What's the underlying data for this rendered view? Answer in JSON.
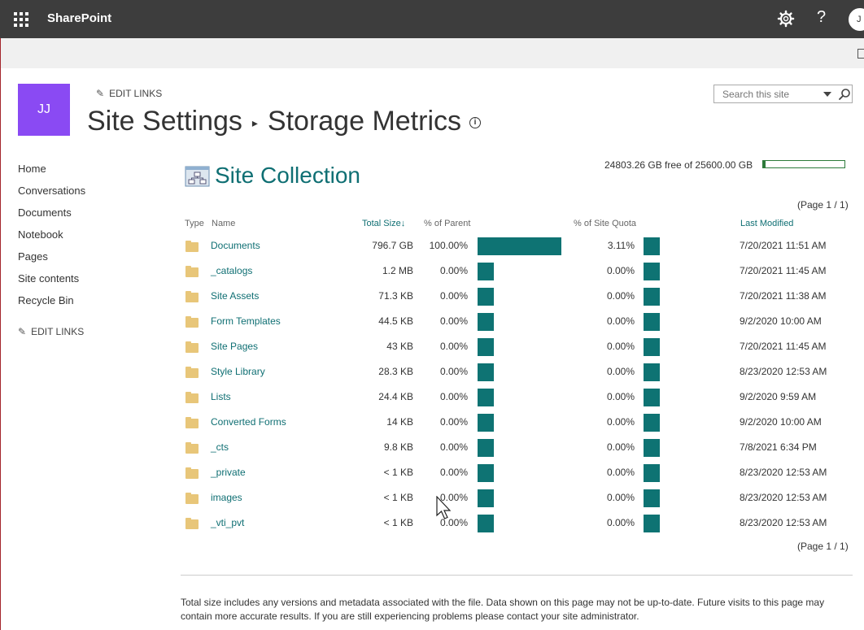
{
  "suite": {
    "brand": "SharePoint",
    "help_glyph": "?",
    "user_initial": "J"
  },
  "site": {
    "logo_initials": "JJ",
    "edit_links": "EDIT LINKS",
    "title_parent": "Site Settings",
    "title_current": "Storage Metrics",
    "info_glyph": "i"
  },
  "search": {
    "placeholder": "Search this site"
  },
  "nav": {
    "items": [
      "Home",
      "Conversations",
      "Documents",
      "Notebook",
      "Pages",
      "Site contents",
      "Recycle Bin"
    ],
    "edit_links": "EDIT LINKS"
  },
  "main": {
    "title": "Site Collection",
    "free_text": "24803.26 GB free of 25600.00 GB",
    "quota_used_fraction": 0.0311,
    "pager_top": "(Page 1 / 1)",
    "pager_bottom": "(Page 1 / 1)",
    "columns": {
      "type": "Type",
      "name": "Name",
      "size": "Total Size",
      "sort_glyph": "↓",
      "pct_parent": "% of Parent",
      "pct_quota": "% of Site Quota",
      "modified": "Last Modified"
    },
    "accent_color": "#0e7373",
    "rows": [
      {
        "name": "Documents",
        "size": "796.7 GB",
        "pct_parent": "100.00%",
        "parent_fraction": 1.0,
        "pct_quota": "3.11%",
        "modified": "7/20/2021 11:51 AM"
      },
      {
        "name": "_catalogs",
        "size": "1.2 MB",
        "pct_parent": "0.00%",
        "parent_fraction": 0.0,
        "pct_quota": "0.00%",
        "modified": "7/20/2021 11:45 AM"
      },
      {
        "name": "Site Assets",
        "size": "71.3 KB",
        "pct_parent": "0.00%",
        "parent_fraction": 0.0,
        "pct_quota": "0.00%",
        "modified": "7/20/2021 11:38 AM"
      },
      {
        "name": "Form Templates",
        "size": "44.5 KB",
        "pct_parent": "0.00%",
        "parent_fraction": 0.0,
        "pct_quota": "0.00%",
        "modified": "9/2/2020 10:00 AM"
      },
      {
        "name": "Site Pages",
        "size": "43 KB",
        "pct_parent": "0.00%",
        "parent_fraction": 0.0,
        "pct_quota": "0.00%",
        "modified": "7/20/2021 11:45 AM"
      },
      {
        "name": "Style Library",
        "size": "28.3 KB",
        "pct_parent": "0.00%",
        "parent_fraction": 0.0,
        "pct_quota": "0.00%",
        "modified": "8/23/2020 12:53 AM"
      },
      {
        "name": "Lists",
        "size": "24.4 KB",
        "pct_parent": "0.00%",
        "parent_fraction": 0.0,
        "pct_quota": "0.00%",
        "modified": "9/2/2020 9:59 AM"
      },
      {
        "name": "Converted Forms",
        "size": "14 KB",
        "pct_parent": "0.00%",
        "parent_fraction": 0.0,
        "pct_quota": "0.00%",
        "modified": "9/2/2020 10:00 AM"
      },
      {
        "name": "_cts",
        "size": "9.8 KB",
        "pct_parent": "0.00%",
        "parent_fraction": 0.0,
        "pct_quota": "0.00%",
        "modified": "7/8/2021 6:34 PM"
      },
      {
        "name": "_private",
        "size": "< 1 KB",
        "pct_parent": "0.00%",
        "parent_fraction": 0.0,
        "pct_quota": "0.00%",
        "modified": "8/23/2020 12:53 AM"
      },
      {
        "name": "images",
        "size": "< 1 KB",
        "pct_parent": "0.00%",
        "parent_fraction": 0.0,
        "pct_quota": "0.00%",
        "modified": "8/23/2020 12:53 AM"
      },
      {
        "name": "_vti_pvt",
        "size": "< 1 KB",
        "pct_parent": "0.00%",
        "parent_fraction": 0.0,
        "pct_quota": "0.00%",
        "modified": "8/23/2020 12:53 AM"
      }
    ]
  },
  "footer": {
    "note": "Total size includes any versions and metadata associated with the file. Data shown on this page may not be up-to-date. Future visits to this page may contain more accurate results. If you are still experiencing problems please contact your site administrator."
  }
}
